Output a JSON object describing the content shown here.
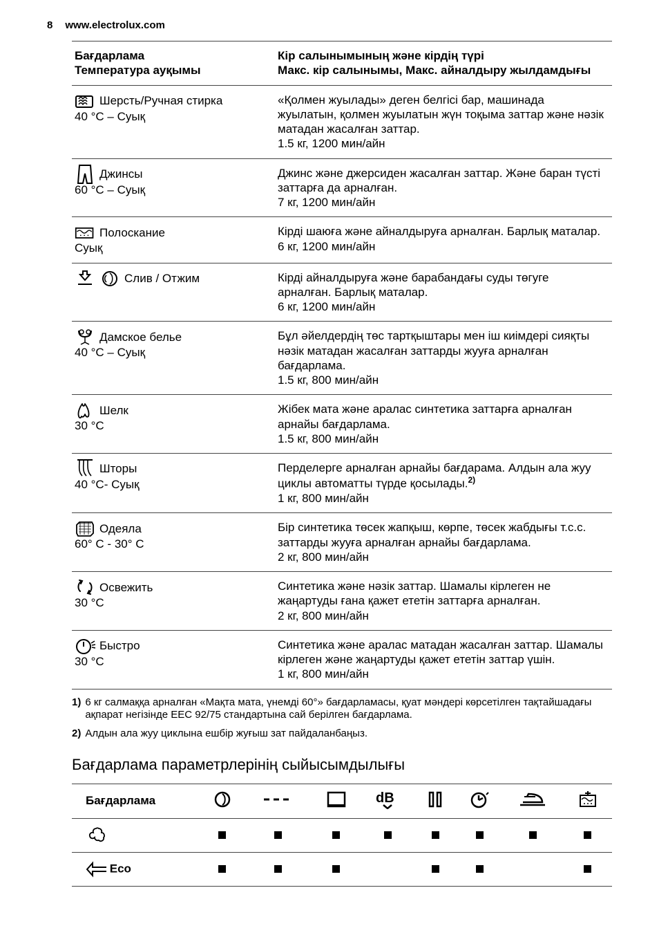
{
  "header": {
    "page_number": "8",
    "site": "www.electrolux.com"
  },
  "programs_table": {
    "head": {
      "left_line1": "Бағдарлама",
      "left_line2": "Температура ауқымы",
      "right_line1": "Кір салынымының және кірдің түрі",
      "right_line2": "Макс. кір салынымы, Макс. айналдыру жылдамдығы"
    },
    "rows": [
      {
        "name": "Шерсть/Ручная стирка",
        "temp": "40 °C – Суық",
        "desc": "«Қолмен жуылады» деген белгісі бар, машинада жуылатын, қолмен жуылатын жүн тоқыма заттар және нәзік матадан жасалған заттар.",
        "spec": "1.5 кг, 1200 мин/айн"
      },
      {
        "name": "Джинсы",
        "temp": "60 °C – Суық",
        "desc": "Джинс және джерсиден жасалған заттар. Және баран түсті заттарға да арналған.",
        "spec": "7 кг, 1200 мин/айн"
      },
      {
        "name": "Полоскание",
        "temp": "Суық",
        "desc": "Кірді шаюға және айналдыруға арналған. Барлық маталар.",
        "spec": "6 кг, 1200 мин/айн"
      },
      {
        "name": "Слив / Отжим",
        "temp": "",
        "desc": "Кірді айналдыруға және барабандағы суды төгуге арналған. Барлық маталар.",
        "spec": "6 кг, 1200 мин/айн"
      },
      {
        "name": "Дамское белье",
        "temp": "40 °C – Суық",
        "desc": "Бұл әйелдердің төс тартқыштары мен іш киімдері сияқты нәзік матадан жасалған заттарды жууға арналған бағдарлама.",
        "spec": "1.5 кг, 800 мин/айн"
      },
      {
        "name": "Шелк",
        "temp": "30 °C",
        "desc": "Жібек мата және аралас синтетика заттарға арналған арнайы бағдарлама.",
        "spec": "1.5 кг, 800 мин/айн"
      },
      {
        "name": "Шторы",
        "temp": "40 °C- Суық",
        "desc_a": "Перделерге арналған арнайы бағдарама. Алдын ала жуу циклы автоматты түрде қосылады.",
        "fn": "2)",
        "spec": "1 кг, 800 мин/айн"
      },
      {
        "name": "Одеяла",
        "temp": "60° C - 30° C",
        "desc": "Бір синтетика төсек жапқыш, көрпе, төсек жабдығы т.с.с. заттарды жууға арналған арнайы бағдарлама.",
        "spec": "2 кг, 800 мин/айн"
      },
      {
        "name": "Освежить",
        "temp": "30 °C",
        "desc": "Синтетика және нәзік заттар. Шамалы кірлеген не жаңартуды ғана қажет ететін заттарға арналған.",
        "spec": "2 кг, 800 мин/айн"
      },
      {
        "name": "Быстро",
        "temp": "30 °C",
        "desc": "Синтетика және аралас матадан жасалған заттар. Шамалы кірлеген және жаңартуды қажет ететін заттар үшін.",
        "spec": "1 кг, 800 мин/айн"
      }
    ]
  },
  "footnotes": {
    "f1_num": "1)",
    "f1": "6 кг салмаққа арналған «Мақта мата, үнемді 60°» бағдарламасы, қуат мәндері көрсетілген тақтайшадағы ақпарат негізінде EEC 92/75 стандартына сай берілген бағдарлама.",
    "f2_num": "2)",
    "f2": "Алдын ала жуу циклына ешбір жуғыш зат пайдаланбаңыз."
  },
  "compat": {
    "heading": "Бағдарлама параметрлерінің сыйысымдылығы",
    "head_first": "Бағдарлама",
    "rows": [
      {
        "label_svg": "cotton",
        "marks": [
          true,
          true,
          true,
          true,
          true,
          true,
          true,
          true
        ]
      },
      {
        "label_text": "Eco",
        "label_svg": "eco",
        "marks": [
          true,
          true,
          true,
          false,
          true,
          true,
          false,
          true
        ]
      }
    ]
  },
  "icons": {
    "wool": "<svg width='30' height='26' viewBox='0 0 30 26'><rect x='2' y='6' width='24' height='16' rx='2' fill='none' stroke='#000' stroke-width='2'/><path d='M6 10c2-3 4-3 6 0 2-3 4-3 6 0M6 14c2-3 4-3 6 0 2-3 4-3 6 0M6 18c2-3 4-3 6 0 2-3 4-3 6 0' fill='none' stroke='#000' stroke-width='1.5'/></svg>",
    "jeans": "<svg width='26' height='30' viewBox='0 0 26 30'><path d='M5 2h16l2 26h-7l-3-14-3 14H3z' fill='none' stroke='#000' stroke-width='2'/></svg>",
    "rinse": "<svg width='34' height='26' viewBox='0 0 34 26'><rect x='2' y='6' width='28' height='16' fill='none' stroke='#000' stroke-width='2'/><path d='M4 12c3-3 5-3 8 0s5 3 8 0 5-3 8 0' fill='none' stroke='#000' stroke-width='1.5'/><circle cx='10' cy='18' r='1' fill='#000'/><circle cx='16' cy='18' r='1' fill='#000'/><circle cx='22' cy='18' r='1' fill='#000'/></svg>",
    "drain": "<svg width='26' height='26' viewBox='0 0 26 26'><path d='M10 2v5h-4l7 8 7-8h-4V2z' fill='none' stroke='#000' stroke-width='2'/><path d='M3 20h20v2H3z' fill='#000'/></svg>",
    "spin": "<svg width='26' height='26' viewBox='0 0 26 26'><circle cx='13' cy='13' r='10' fill='none' stroke='#000' stroke-width='2'/><path d='M13 5c5 3 5 13 0 16M8 8c-3 3-3 7 0 10' fill='none' stroke='#000' stroke-width='1.5'/></svg>",
    "lingerie": "<svg width='26' height='26' viewBox='0 0 26 26'><path d='M4 4c0 7 4 9 9 9s9-2 9-9' fill='none' stroke='#000' stroke-width='2'/><circle cx='8' cy='6' r='3' fill='none' stroke='#000' stroke-width='1.5'/><circle cx='18' cy='6' r='3' fill='none' stroke='#000' stroke-width='1.5'/><path d='M13 13v8l-6 3M13 21l6 3' fill='none' stroke='#000' stroke-width='1.5'/></svg>",
    "silk": "<svg width='30' height='26' viewBox='0 0 30 26'><path d='M6 22c-2-6 2-14 5-18 1 4 3 4 4 0 3 4 7 12 5 18-2 2-4 0-5-3-1 3-3 5-5 3-1 3-3 3-4 0z' fill='none' stroke='#000' stroke-width='1.8' stroke-linejoin='round'/></svg>",
    "curtains": "<svg width='26' height='30' viewBox='0 0 26 30'><line x1='2' y1='2' x2='24' y2='2' stroke='#000' stroke-width='2'/><path d='M5 3c0 8-2 16 4 22M11 3c0 8-2 16 4 22M17 3c0 8-1 16 5 22' fill='none' stroke='#000' stroke-width='1.6'/></svg>",
    "duvet": "<svg width='30' height='26' viewBox='0 0 30 26'><path d='M3 8l4-4h18l2 4v12l-4 4H5l-2-4z' fill='none' stroke='#000' stroke-width='1.8'/><path d='M6 6l18 0M6 10l18 0M6 14l18 0M6 18l18 0M8 4l0 18M14 4l0 18M20 4l0 18' stroke='#000' stroke-width='0.8'/></svg>",
    "refresh": "<svg width='28' height='28' viewBox='0 0 28 28'><path d='M8 6c-4 3-5 10-1 14M6 4l4 1-2 4M20 22c4-3 5-10 1-14M22 24l-4-1 2-4' fill='none' stroke='#000' stroke-width='2' stroke-linecap='round'/></svg>",
    "quick": "<svg width='30' height='28' viewBox='0 0 30 28'><circle cx='13' cy='15' r='10' fill='none' stroke='#000' stroke-width='2'/><line x1='13' y1='15' x2='13' y2='8' stroke='#000' stroke-width='2'/><path d='M24 10l5-3M25 13l5-1M25 16l5 1' stroke='#000' stroke-width='1.6'/></svg>",
    "c_spin": "<svg width='26' height='26'><circle cx='13' cy='13' r='10' fill='none' stroke='#000' stroke-width='2.5'/><path d='M13 5c5 3 5 13 0 16' fill='none' stroke='#000' stroke-width='2'/></svg>",
    "c_dash": "<svg width='46' height='20'><line x1='2' y1='10' x2='10' y2='10' stroke='#000' stroke-width='3'/><line x1='16' y1='10' x2='24' y2='10' stroke='#000' stroke-width='3'/><line x1='30' y1='10' x2='38' y2='10' stroke='#000' stroke-width='3'/></svg>",
    "c_tub": "<svg width='30' height='26'><rect x='3' y='3' width='24' height='20' fill='none' stroke='#000' stroke-width='2.5'/><line x1='3' y1='22' x2='27' y2='22' stroke='#000' stroke-width='4'/></svg>",
    "c_db": "<svg width='34' height='28'><text x='0' y='18' font-size='20' font-weight='900' font-family='Arial'>dB</text><path d='M11 22l6 5 6-5' fill='none' stroke='#000' stroke-width='2.5'/></svg>",
    "c_pause": "<svg width='24' height='26'><rect x='4' y='3' width='5' height='20' fill='none' stroke='#000' stroke-width='2.5'/><rect x='15' y='3' width='5' height='20' fill='none' stroke='#000' stroke-width='2.5'/></svg>",
    "c_clock": "<svg width='28' height='26'><circle cx='13' cy='14' r='10' fill='none' stroke='#000' stroke-width='2.5'/><line x1='13' y1='14' x2='13' y2='7' stroke='#000' stroke-width='2.5'/><line x1='13' y1='14' x2='19' y2='11' stroke='#000' stroke-width='2.5'/><path d='M24 6l3-3' stroke='#000' stroke-width='2'/></svg>",
    "c_iron": "<svg width='40' height='24'><path d='M6 16h28c0-8-8-12-20-12l-2 4' fill='none' stroke='#000' stroke-width='2.5'/><line x1='2' y1='20' x2='38' y2='20' stroke='#000' stroke-width='2.5'/><line x1='8' y1='8' x2='24' y2='8' stroke='#000' stroke-width='2'/></svg>",
    "c_prewash": "<svg width='30' height='28'><rect x='4' y='8' width='22' height='16' fill='none' stroke='#000' stroke-width='2'/><path d='M6 14c3-3 5-3 8 0s5 3 8 0' fill='none' stroke='#000' stroke-width='1.5'/><circle cx='10' cy='20' r='1' fill='#000'/><circle cx='15' cy='20' r='1' fill='#000'/><circle cx='20' cy='20' r='1' fill='#000'/><line x1='15' y1='2' x2='15' y2='7' stroke='#000' stroke-width='2'/><line x1='11' y1='5' x2='19' y2='5' stroke='#000' stroke-width='2'/></svg>",
    "cotton": "<svg width='30' height='28'><path d='M15 4c-3 0-5 3-4 6-3-1-6 2-5 5 1 4 5 4 7 2 0 3 3 5 6 4 3 3 8 0 7-4 2-2 1-7-3-7 1-3-1-6-4-6-1-1-3-1-4 0z' fill='none' stroke='#000' stroke-width='1.8'/></svg>",
    "eco": "<svg width='44' height='26'><path d='M2 13l8-9v6h30v6H10v6z' fill='none' stroke='#000' stroke-width='2'/></svg>"
  }
}
